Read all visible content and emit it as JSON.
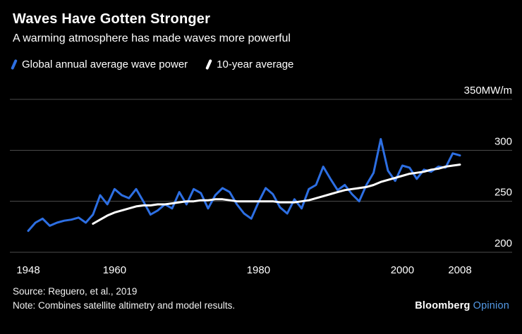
{
  "header": {
    "title": "Waves Have Gotten Stronger",
    "subtitle": "A warming atmosphere has made waves more powerful"
  },
  "legend": {
    "items": [
      {
        "label": "Global annual average wave power",
        "color": "#2d6fe3"
      },
      {
        "label": "10-year average",
        "color": "#ffffff"
      }
    ]
  },
  "chart_data": {
    "type": "line",
    "title": "Waves Have Gotten Stronger",
    "subtitle": "A warming atmosphere has made waves more powerful",
    "unit": "MW/m",
    "xlim": [
      1948,
      2008
    ],
    "ylim": [
      200,
      350
    ],
    "yticks": [
      200,
      250,
      300,
      350
    ],
    "ytick_labels": [
      "200",
      "250",
      "300",
      "350MW/m"
    ],
    "xticks": [
      1948,
      1960,
      1980,
      2000,
      2008
    ],
    "grid": true,
    "grid_color": "#4d4d4d",
    "axis_text_color": "#ffffff",
    "legend_position": "top",
    "series": [
      {
        "name": "Global annual average wave power",
        "color": "#2d6fe3",
        "x_start": 1948,
        "values": [
          221,
          229,
          233,
          226,
          229,
          231,
          232,
          234,
          229,
          237,
          256,
          247,
          262,
          256,
          253,
          262,
          250,
          237,
          241,
          247,
          243,
          259,
          247,
          262,
          258,
          243,
          256,
          263,
          259,
          247,
          238,
          233,
          249,
          263,
          257,
          244,
          238,
          252,
          243,
          262,
          266,
          284,
          272,
          261,
          266,
          257,
          250,
          266,
          278,
          311,
          280,
          270,
          285,
          283,
          272,
          281,
          279,
          284,
          283,
          297,
          295
        ]
      },
      {
        "name": "10-year average",
        "color": "#ffffff",
        "x_start": 1957,
        "values": [
          228,
          232,
          236,
          239,
          241,
          243,
          245,
          246,
          246,
          247,
          247,
          248,
          249,
          250,
          250,
          251,
          251,
          252,
          252,
          251,
          250,
          250,
          250,
          250,
          250,
          250,
          249,
          249,
          249,
          250,
          251,
          253,
          255,
          257,
          259,
          261,
          262,
          263,
          264,
          266,
          269,
          271,
          273,
          275,
          277,
          278,
          279,
          281,
          282,
          284,
          285,
          286
        ]
      }
    ]
  },
  "footer": {
    "source": "Source: Reguero, et al., 2019",
    "note": "Note: Combines satellite altimetry and model results.",
    "brand": "Bloomberg",
    "brand_suffix": "Opinion",
    "brand_suffix_color": "#549be8"
  }
}
